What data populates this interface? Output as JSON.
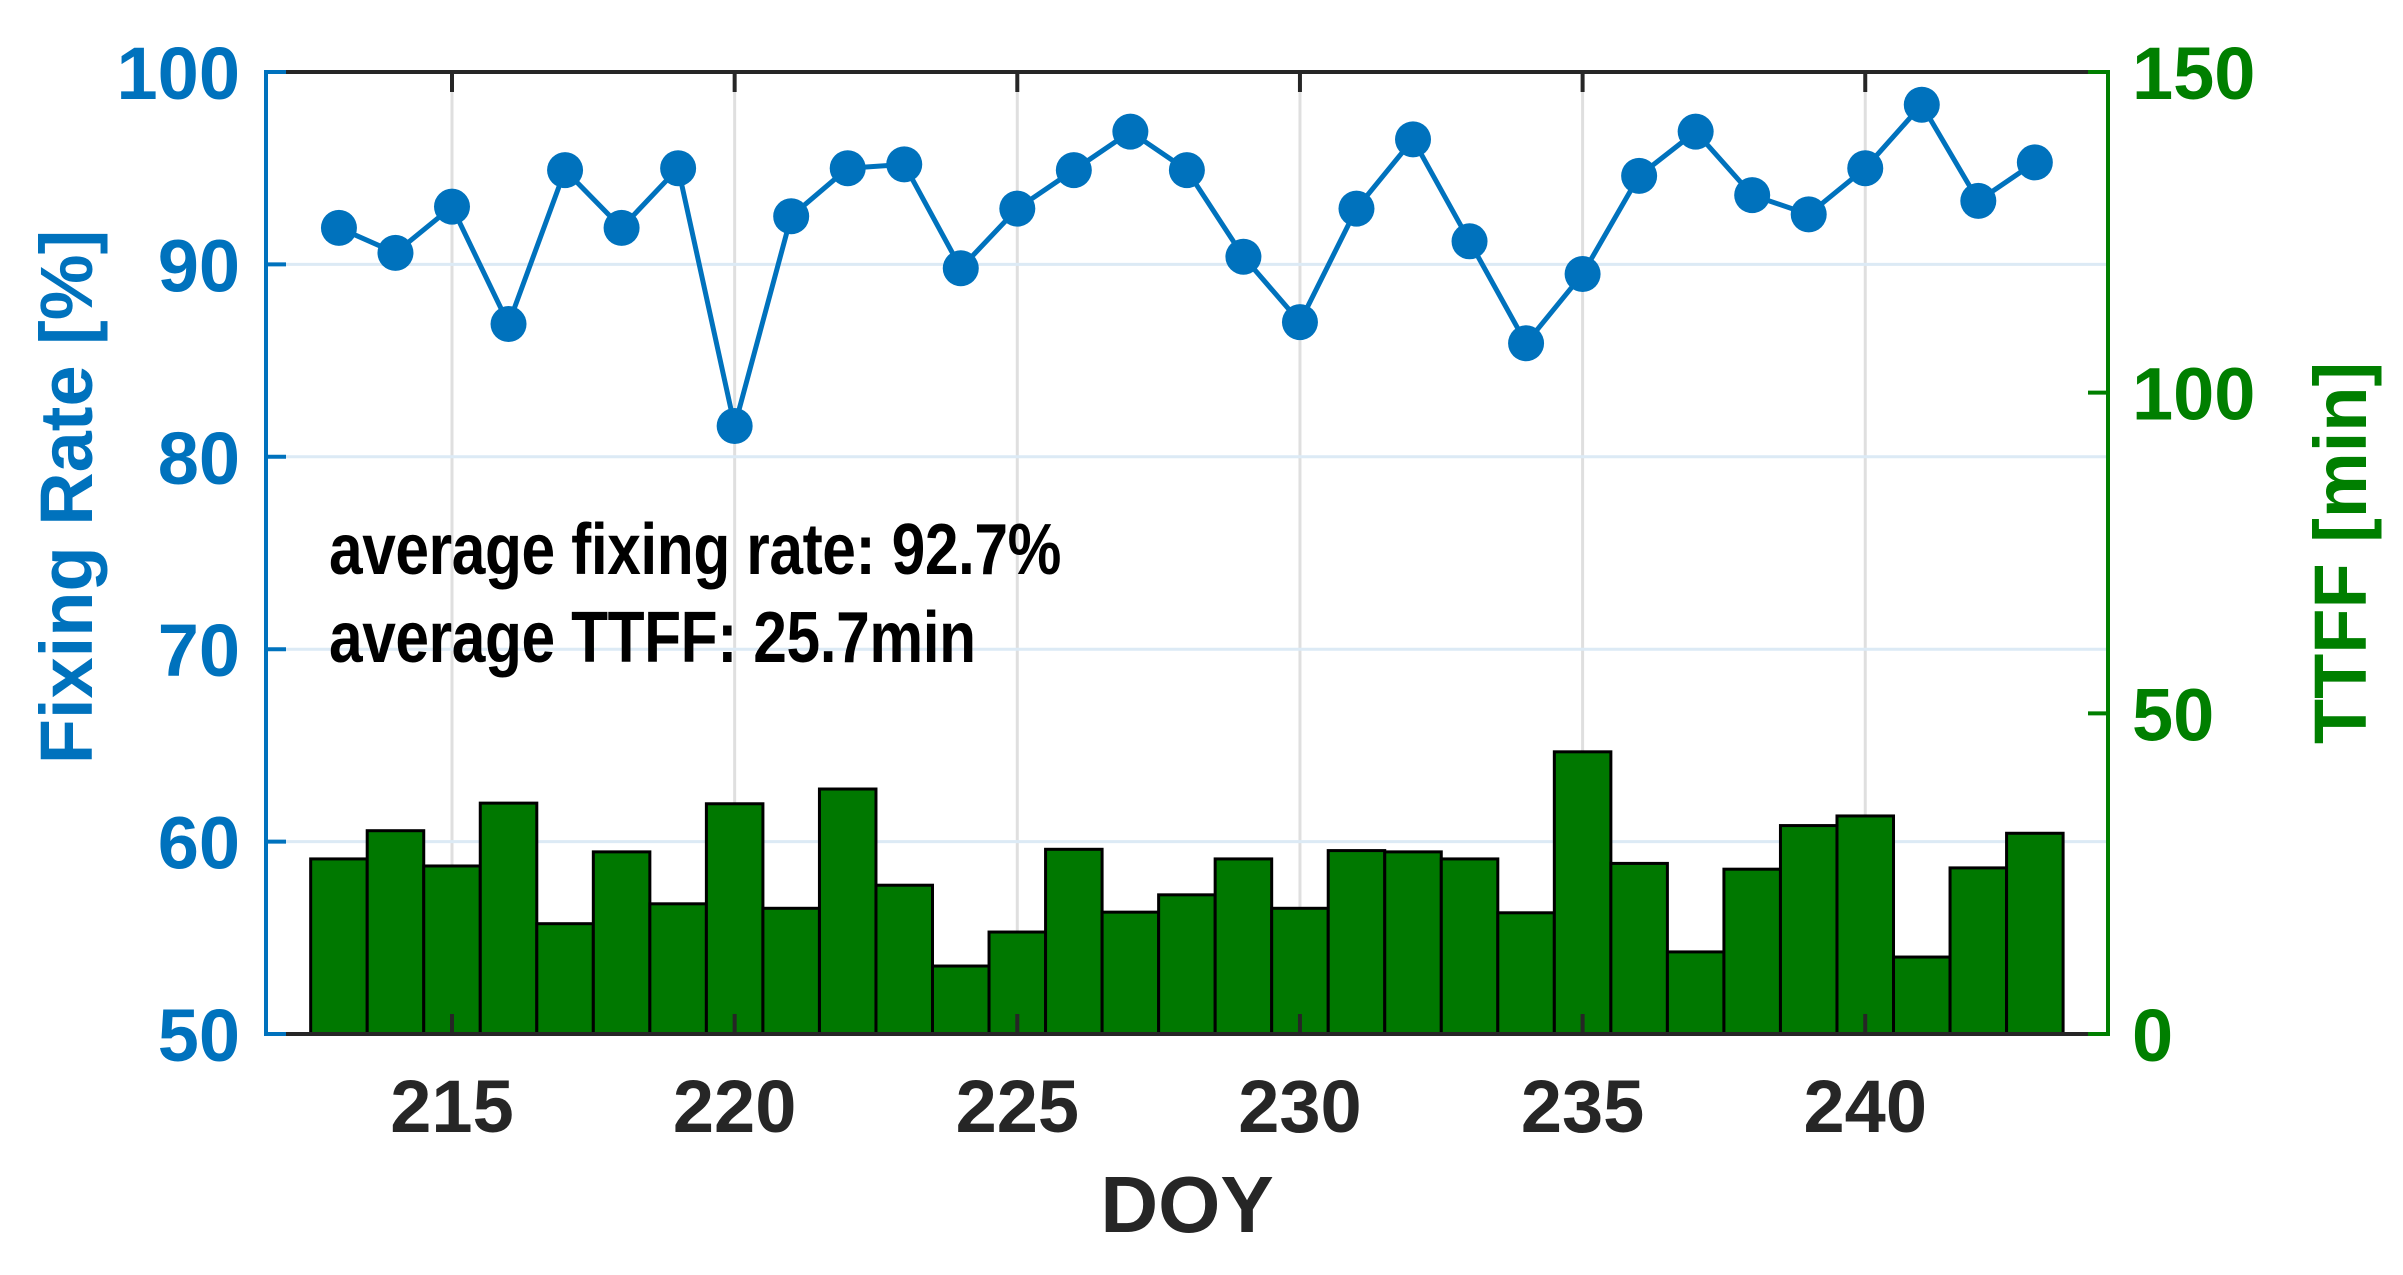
{
  "chart_data": {
    "type": "bar+line",
    "title": "",
    "xlabel": "DOY",
    "ylabel_left": "Fixing Rate [%]",
    "ylabel_right": "TTFF [min]",
    "x": [
      213,
      214,
      215,
      216,
      217,
      218,
      219,
      220,
      221,
      222,
      223,
      224,
      225,
      226,
      227,
      228,
      229,
      230,
      231,
      232,
      233,
      234,
      235,
      236,
      237,
      238,
      239,
      240,
      241,
      242,
      243
    ],
    "xticks": [
      215,
      220,
      225,
      230,
      235,
      240
    ],
    "xlim": [
      212.5,
      245.5
    ],
    "ylim_left": [
      50,
      100
    ],
    "yticks_left": [
      50,
      60,
      70,
      80,
      90,
      100
    ],
    "ylim_right": [
      0,
      150
    ],
    "yticks_right": [
      0,
      50,
      100,
      150
    ],
    "grid": true,
    "legend": null,
    "series": [
      {
        "name": "Fixing Rate",
        "type": "line",
        "axis": "left",
        "marker": "circle",
        "color": "#0072BD",
        "values": [
          91.9,
          90.6,
          93.0,
          86.9,
          94.9,
          91.9,
          95.0,
          81.6,
          92.5,
          95.0,
          95.2,
          89.8,
          92.9,
          94.9,
          96.9,
          94.9,
          90.4,
          87.0,
          92.9,
          96.5,
          91.2,
          85.9,
          89.5,
          94.6,
          96.9,
          93.6,
          92.6,
          95.0,
          98.3,
          93.3,
          95.3
        ]
      },
      {
        "name": "TTFF",
        "type": "bar",
        "axis": "right",
        "color": "#007800",
        "edgecolor": "#000000",
        "values": [
          27.3,
          31.7,
          26.2,
          36.0,
          17.2,
          28.4,
          20.3,
          35.9,
          19.6,
          38.2,
          23.2,
          10.6,
          15.9,
          28.8,
          19.0,
          21.7,
          27.3,
          19.6,
          28.6,
          28.4,
          27.3,
          18.9,
          44.0,
          26.6,
          12.8,
          25.7,
          32.5,
          34.0,
          12.0,
          25.9,
          31.3
        ]
      }
    ],
    "annotations": [
      "average fixing rate: 92.7%",
      "average TTFF: 25.7min"
    ]
  },
  "colors": {
    "left_axis": "#0072BD",
    "right_axis": "#007F00",
    "x_axis": "#262626",
    "grid_x": "#DFDFDF",
    "grid_y": "#DCEAF5",
    "bar_fill": "#007800",
    "bar_edge": "#000000",
    "line": "#0072BD",
    "annotation": "#000000"
  }
}
